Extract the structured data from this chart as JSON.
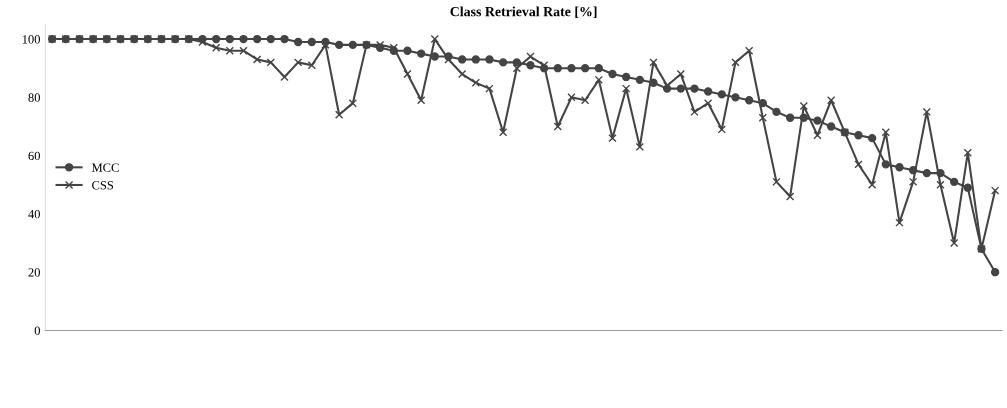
{
  "chart_data": {
    "type": "line",
    "title": "Class Retrieval Rate [%]",
    "categories": [
      null,
      null,
      null,
      null,
      null,
      null,
      null,
      null,
      null,
      null,
      null,
      null,
      null,
      null,
      null,
      null,
      null,
      null,
      null,
      null,
      null,
      null,
      null,
      null,
      null,
      null,
      null,
      null,
      null,
      null,
      null,
      null,
      null,
      null,
      null,
      null,
      null,
      null,
      null,
      null,
      null,
      null,
      null,
      null,
      null,
      null,
      null,
      null,
      null,
      null,
      null,
      null,
      null,
      null,
      null,
      null,
      null,
      null,
      null,
      null,
      null,
      null,
      null,
      null,
      null,
      null,
      null,
      null,
      null,
      null
    ],
    "series": [
      {
        "name": "MCC",
        "color": "#444444",
        "marker": "circle",
        "values": [
          100,
          100,
          100,
          100,
          100,
          100,
          100,
          100,
          100,
          100,
          100,
          100,
          100,
          100,
          100,
          100,
          100,
          100,
          99,
          99,
          99,
          98,
          98,
          98,
          97,
          96,
          96,
          95,
          94,
          94,
          93,
          93,
          93,
          92,
          92,
          91,
          90,
          90,
          90,
          90,
          90,
          88,
          87,
          86,
          85,
          83,
          83,
          83,
          82,
          81,
          80,
          79,
          78,
          75,
          73,
          73,
          72,
          70,
          68,
          67,
          66,
          57,
          56,
          55,
          54,
          54,
          51,
          49,
          28,
          20
        ]
      },
      {
        "name": "CSS",
        "color": "#444444",
        "marker": "cross",
        "values": [
          100,
          100,
          100,
          100,
          100,
          100,
          100,
          100,
          100,
          100,
          100,
          99,
          97,
          96,
          96,
          93,
          92,
          87,
          92,
          91,
          98,
          74,
          78,
          98,
          98,
          97,
          88,
          79,
          100,
          93,
          88,
          85,
          83,
          68,
          90,
          94,
          91,
          70,
          80,
          79,
          86,
          66,
          83,
          63,
          92,
          84,
          88,
          75,
          78,
          69,
          92,
          96,
          73,
          51,
          46,
          77,
          67,
          79,
          68,
          57,
          50,
          68,
          37,
          51,
          75,
          50,
          30,
          61,
          28,
          48
        ]
      }
    ],
    "ylim": [
      0,
      105
    ],
    "yticks": [
      0,
      20,
      40,
      60,
      80,
      100
    ],
    "grid": false,
    "legend": "left",
    "line_style": "solid"
  }
}
